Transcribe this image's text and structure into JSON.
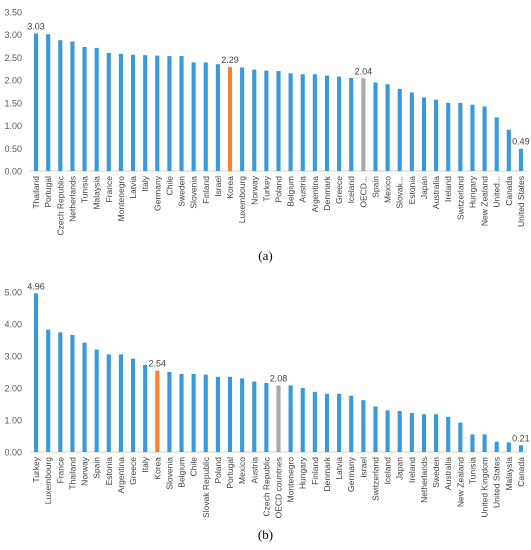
{
  "captions": [
    "(a)",
    "(b)"
  ],
  "chart_data": [
    {
      "type": "bar",
      "title": "",
      "xlabel": "",
      "ylabel": "",
      "ylim": [
        0,
        3.5
      ],
      "yticks": [
        "0.00",
        "0.50",
        "1.00",
        "1.50",
        "2.00",
        "2.50",
        "3.00",
        "3.50"
      ],
      "grid": false,
      "legend": "none",
      "colors": {
        "default": "#3a9ad9",
        "highlight": "#ff7f2a",
        "oecd": "#a9a9a9"
      },
      "categories": [
        "Thailand",
        "Portugal",
        "Czech Republic",
        "Netherlands",
        "Tunisia",
        "Malaysia",
        "France",
        "Montenegro",
        "Latvia",
        "Italy",
        "Germany",
        "Chile",
        "Sweden",
        "Slovenia",
        "Finland",
        "Israel",
        "Korea",
        "Luxembourg",
        "Norway",
        "Turkey",
        "Poland",
        "Belgium",
        "Austria",
        "Argentina",
        "Denmark",
        "Greece",
        "Iceland",
        "OECD...",
        "Spain",
        "Mexico",
        "Slovak...",
        "Estonia",
        "Japan",
        "Australia",
        "Ireland",
        "Switzerland",
        "Hungary",
        "New Zealand",
        "United...",
        "Canada",
        "United States"
      ],
      "values": [
        3.03,
        3.01,
        2.88,
        2.85,
        2.73,
        2.71,
        2.6,
        2.58,
        2.56,
        2.55,
        2.54,
        2.53,
        2.53,
        2.39,
        2.39,
        2.35,
        2.29,
        2.28,
        2.23,
        2.21,
        2.2,
        2.15,
        2.13,
        2.13,
        2.1,
        2.08,
        2.05,
        2.04,
        1.95,
        1.91,
        1.81,
        1.73,
        1.62,
        1.57,
        1.5,
        1.5,
        1.46,
        1.42,
        1.18,
        0.91,
        0.49
      ],
      "highlight": [
        "Korea"
      ],
      "oecd": [
        "OECD..."
      ],
      "data_labels": {
        "Thailand": "3.03",
        "Korea": "2.29",
        "OECD...": "2.04",
        "United States": "0.49"
      }
    },
    {
      "type": "bar",
      "title": "",
      "xlabel": "",
      "ylabel": "",
      "ylim": [
        0,
        5
      ],
      "yticks": [
        "0.00",
        "1.00",
        "2.00",
        "3.00",
        "4.00",
        "5.00"
      ],
      "grid": false,
      "legend": "none",
      "colors": {
        "default": "#3a9ad9",
        "highlight": "#ff7f2a",
        "oecd": "#a9a9a9"
      },
      "categories": [
        "Turkey",
        "Luxembourg",
        "France",
        "Thailand",
        "Norway",
        "Spain",
        "Estonia",
        "Argentina",
        "Greece",
        "Italy",
        "Korea",
        "Slovenia",
        "Belgium",
        "Chile",
        "Slovak Republic",
        "Poland",
        "Portugal",
        "Mexico",
        "Austria",
        "Czech Republic",
        "OECD countries",
        "Montenegro",
        "Hungary",
        "Finland",
        "Denmark",
        "Latvia",
        "Germany",
        "Israel",
        "Switzerland",
        "Iceland",
        "Japan",
        "Ireland",
        "Netherlands",
        "Sweden",
        "Australia",
        "New Zealand",
        "Tunisia",
        "United Kingdom",
        "United States",
        "Malaysia",
        "Canada"
      ],
      "values": [
        4.96,
        3.82,
        3.74,
        3.66,
        3.42,
        3.2,
        3.05,
        3.05,
        2.92,
        2.72,
        2.54,
        2.5,
        2.44,
        2.44,
        2.42,
        2.35,
        2.35,
        2.3,
        2.2,
        2.16,
        2.08,
        2.08,
        2.0,
        1.88,
        1.82,
        1.82,
        1.76,
        1.62,
        1.42,
        1.3,
        1.28,
        1.22,
        1.18,
        1.18,
        1.1,
        0.92,
        0.55,
        0.55,
        0.32,
        0.3,
        0.21
      ],
      "highlight": [
        "Korea"
      ],
      "oecd": [
        "OECD countries"
      ],
      "data_labels": {
        "Turkey": "4.96",
        "Korea": "2.54",
        "OECD countries": "2.08",
        "Canada": "0.21"
      }
    }
  ]
}
